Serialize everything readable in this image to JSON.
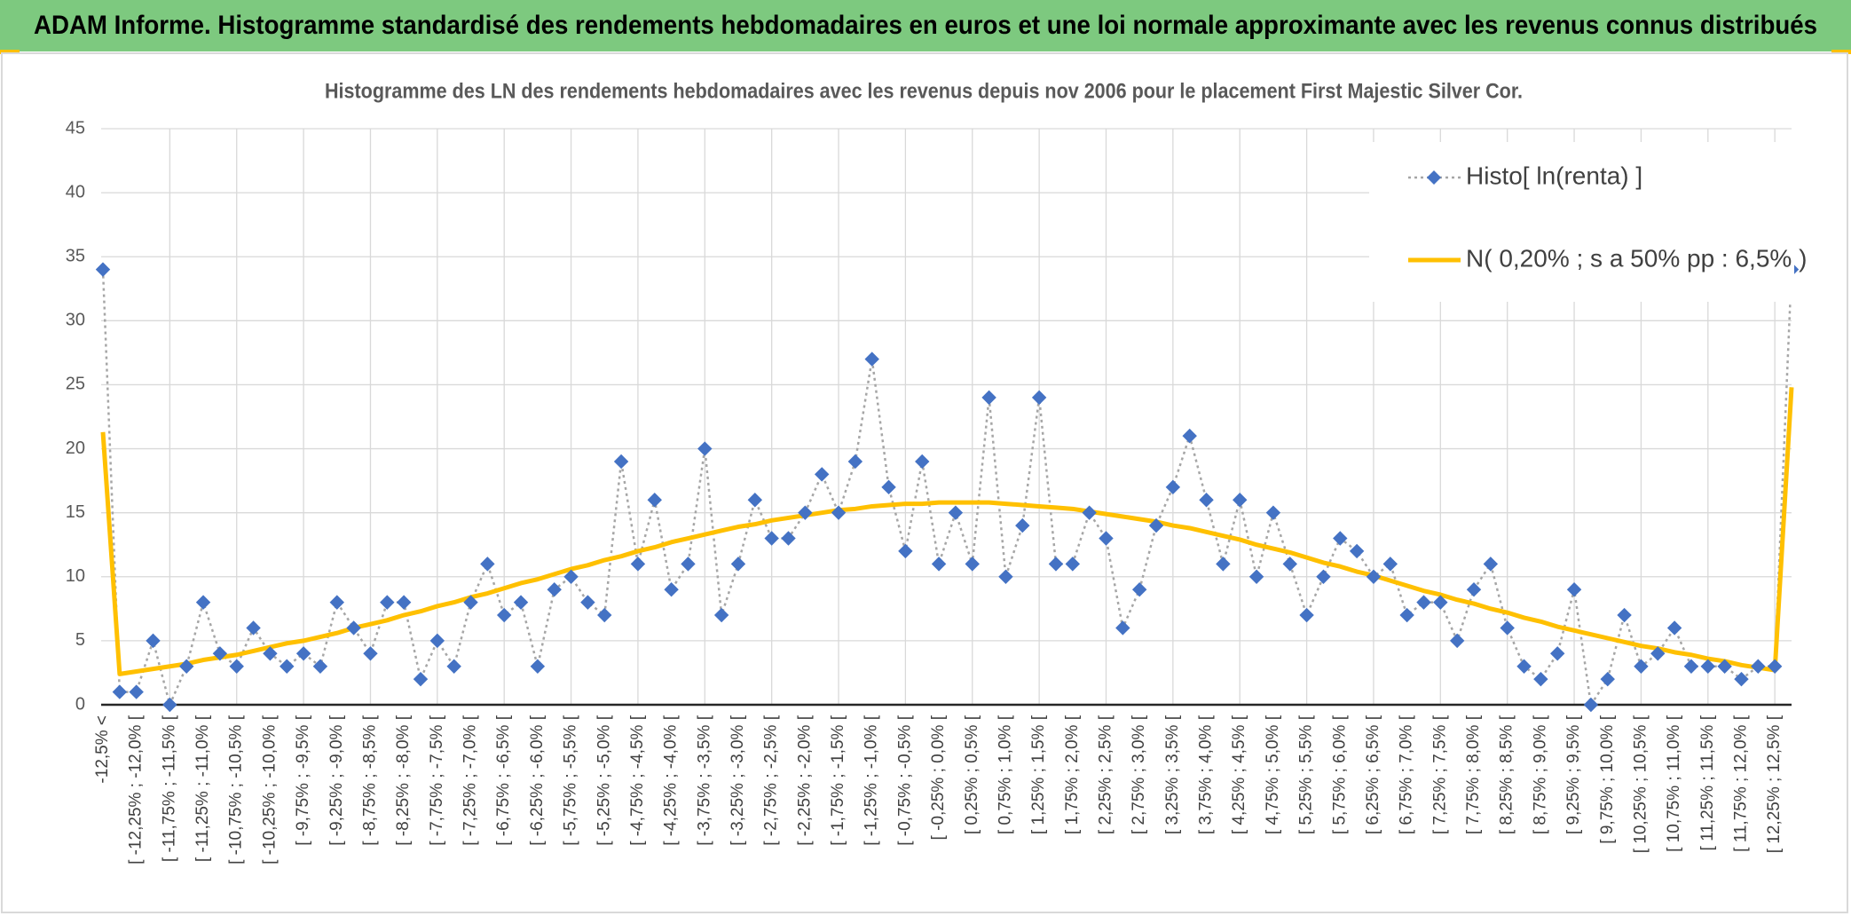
{
  "header": {
    "title": "ADAM Informe. Histogramme standardisé des rendements hebdomadaires en euros et une loi normale approximante avec les revenus connus distribués"
  },
  "chart_data": {
    "type": "line",
    "title": "Histogramme des LN des rendements hebdomadaires avec les revenus depuis nov 2006 pour le placement First Majestic Silver Cor.",
    "categories": [
      "-12,5% <",
      null,
      "[ -12,25% ; -12,0% [",
      null,
      "[ -11,75% ; -11,5% [",
      null,
      "[ -11,25% ; -11,0% [",
      null,
      "[ -10,75% ; -10,5% [",
      null,
      "[ -10,25% ; -10,0% [",
      null,
      "[ -9,75% ; -9,5% [",
      null,
      "[ -9,25% ; -9,0% [",
      null,
      "[ -8,75% ; -8,5% [",
      null,
      "[ -8,25% ; -8,0% [",
      null,
      "[ -7,75% ; -7,5% [",
      null,
      "[ -7,25% ; -7,0% [",
      null,
      "[ -6,75% ; -6,5% [",
      null,
      "[ -6,25% ; -6,0% [",
      null,
      "[ -5,75% ; -5,5% [",
      null,
      "[ -5,25% ; -5,0% [",
      null,
      "[ -4,75% ; -4,5% [",
      null,
      "[ -4,25% ; -4,0% [",
      null,
      "[ -3,75% ; -3,5% [",
      null,
      "[ -3,25% ; -3,0% [",
      null,
      "[ -2,75% ; -2,5% [",
      null,
      "[ -2,25% ; -2,0% [",
      null,
      "[ -1,75% ; -1,5% [",
      null,
      "[ -1,25% ; -1,0% [",
      null,
      "[ -0,75% ; -0,5% [",
      null,
      "[ -0,25% ; 0,0% [",
      null,
      "[ 0,25% ; 0,5% [",
      null,
      "[ 0,75% ; 1,0% [",
      null,
      "[ 1,25% ; 1,5% [",
      null,
      "[ 1,75% ; 2,0% [",
      null,
      "[ 2,25% ; 2,5% [",
      null,
      "[ 2,75% ; 3,0% [",
      null,
      "[ 3,25% ; 3,5% [",
      null,
      "[ 3,75% ; 4,0% [",
      null,
      "[ 4,25% ; 4,5% [",
      null,
      "[ 4,75% ; 5,0% [",
      null,
      "[ 5,25% ; 5,5% [",
      null,
      "[ 5,75% ; 6,0% [",
      null,
      "[ 6,25% ; 6,5% [",
      null,
      "[ 6,75% ; 7,0% [",
      null,
      "[ 7,25% ; 7,5% [",
      null,
      "[ 7,75% ; 8,0% [",
      null,
      "[ 8,25% ; 8,5% [",
      null,
      "[ 8,75% ; 9,0% [",
      null,
      "[ 9,25% ; 9,5% [",
      null,
      "[ 9,75% ; 10,0% [",
      null,
      "[ 10,25% ; 10,5% [",
      null,
      "[ 10,75% ; 11,0% [",
      null,
      "[ 11,25% ; 11,5% [",
      null,
      "[ 11,75% ; 12,0% [",
      null,
      "[ 12,25% ; 12,5% [",
      null
    ],
    "series": [
      {
        "name": "Histo[ ln(renta) ]",
        "color": "#4472c4",
        "line_color": "#a6a6a6",
        "marker": "diamond",
        "values": [
          34,
          1,
          1,
          5,
          0,
          3,
          8,
          4,
          3,
          6,
          4,
          3,
          4,
          3,
          8,
          6,
          4,
          8,
          8,
          2,
          5,
          3,
          8,
          11,
          7,
          8,
          3,
          9,
          10,
          8,
          7,
          19,
          11,
          16,
          9,
          11,
          20,
          7,
          11,
          16,
          13,
          13,
          15,
          18,
          15,
          19,
          27,
          17,
          12,
          19,
          11,
          15,
          11,
          24,
          10,
          14,
          24,
          11,
          11,
          15,
          13,
          6,
          9,
          14,
          17,
          21,
          16,
          11,
          16,
          10,
          15,
          11,
          7,
          10,
          13,
          12,
          10,
          11,
          7,
          8,
          8,
          5,
          9,
          11,
          6,
          3,
          2,
          4,
          9,
          0,
          2,
          7,
          3,
          4,
          6,
          3,
          3,
          3,
          2,
          3,
          3,
          34
        ]
      },
      {
        "name": "N( 0,20% ; s a 50% pp : 6,5% )",
        "color": "#ffc000",
        "values": [
          21.3,
          2.4,
          2.6,
          2.8,
          3.0,
          3.2,
          3.5,
          3.7,
          3.9,
          4.2,
          4.5,
          4.8,
          5.0,
          5.3,
          5.6,
          6.0,
          6.3,
          6.6,
          7.0,
          7.3,
          7.7,
          8.0,
          8.4,
          8.7,
          9.1,
          9.5,
          9.8,
          10.2,
          10.6,
          10.9,
          11.3,
          11.6,
          12.0,
          12.3,
          12.7,
          13.0,
          13.3,
          13.6,
          13.9,
          14.1,
          14.4,
          14.6,
          14.8,
          15.0,
          15.2,
          15.3,
          15.5,
          15.6,
          15.7,
          15.7,
          15.8,
          15.8,
          15.8,
          15.8,
          15.7,
          15.6,
          15.5,
          15.4,
          15.3,
          15.1,
          14.9,
          14.7,
          14.5,
          14.3,
          14.0,
          13.8,
          13.5,
          13.2,
          12.9,
          12.5,
          12.2,
          11.9,
          11.5,
          11.1,
          10.8,
          10.4,
          10.1,
          9.7,
          9.3,
          8.9,
          8.6,
          8.2,
          7.9,
          7.5,
          7.2,
          6.8,
          6.5,
          6.1,
          5.8,
          5.5,
          5.2,
          4.9,
          4.6,
          4.4,
          4.1,
          3.9,
          3.6,
          3.4,
          3.1,
          2.9,
          2.7,
          24.8
        ]
      }
    ],
    "ylim": [
      0,
      45
    ],
    "yticks": [
      0,
      5,
      10,
      15,
      20,
      25,
      30,
      35,
      40,
      45
    ],
    "grid": true,
    "legend": "upper right"
  }
}
